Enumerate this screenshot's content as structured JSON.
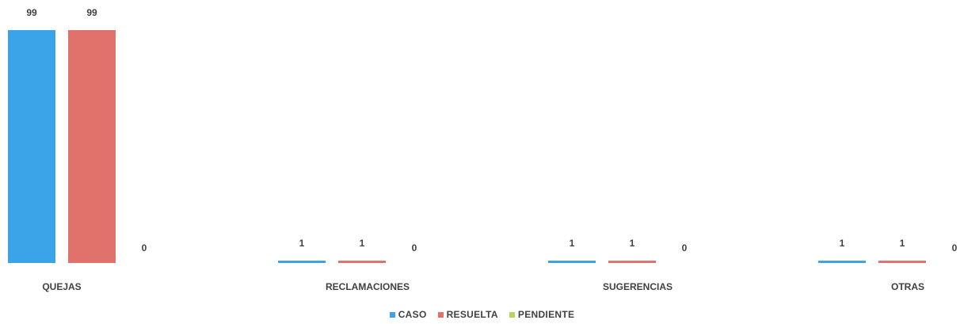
{
  "chart_data": {
    "type": "bar",
    "categories": [
      "QUEJAS",
      "RECLAMACIONES",
      "SUGERENCIAS",
      "OTRAS"
    ],
    "series": [
      {
        "name": "CASO",
        "values": [
          99,
          1,
          1,
          1
        ],
        "color": "#3ba3e8"
      },
      {
        "name": "RESUELTA",
        "values": [
          99,
          1,
          1,
          1
        ],
        "color": "#e0716b"
      },
      {
        "name": "PENDIENTE",
        "values": [
          0,
          0,
          0,
          0
        ],
        "color": "#b5d55f"
      }
    ],
    "title": "",
    "xlabel": "",
    "ylabel": "",
    "ylim": [
      0,
      99
    ],
    "grid": false,
    "legend_position": "bottom"
  }
}
